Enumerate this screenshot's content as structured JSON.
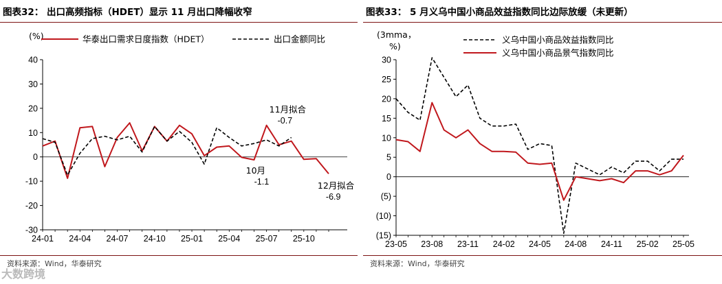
{
  "left_panel": {
    "title": "图表32：   出口高频指标（HDET）显示 11 月出口降幅收窄",
    "source": "资料来源：Wind，华泰研究"
  },
  "right_panel": {
    "title": "图表33：   5 月义乌中国小商品效益指数同比边际放缓（未更新）",
    "source": "资料来源：Wind，华泰研究"
  },
  "watermark": "大数跨境",
  "colors": {
    "red": "#c0171c",
    "black": "#000000",
    "rule": "#7b1010"
  },
  "chart_data": [
    {
      "type": "line",
      "ylabel": "(%)",
      "ylim": [
        -30,
        40
      ],
      "yticks": [
        -30,
        -20,
        -10,
        0,
        10,
        20,
        30,
        40
      ],
      "x": [
        "24-01",
        "24-02",
        "24-03",
        "24-04",
        "24-05",
        "24-06",
        "24-07",
        "24-08",
        "24-09",
        "24-10",
        "24-11",
        "24-12",
        "25-01",
        "25-02",
        "25-03",
        "25-04",
        "25-05",
        "25-06",
        "25-07",
        "25-08",
        "25-09",
        "25-10",
        "25-11",
        "25-12"
      ],
      "xtick_labels": [
        "24-01",
        "24-04",
        "24-07",
        "24-10",
        "25-01",
        "25-04",
        "25-07",
        "25-10"
      ],
      "series": [
        {
          "name": "华泰出口需求日度指数（HDET）",
          "style": "solid",
          "color": "#c0171c",
          "values": [
            4.5,
            6.5,
            -8.8,
            12.0,
            12.5,
            -4.0,
            8.0,
            14.0,
            2.5,
            12.5,
            6.5,
            13.0,
            9.5,
            0.5,
            4.0,
            4.5,
            -0.2,
            -1.2,
            13.0,
            5.0,
            6.5,
            -1.0,
            -0.7,
            -6.9
          ]
        },
        {
          "name": "出口金额同比",
          "style": "dashed",
          "color": "#000000",
          "values": [
            7.5,
            6.0,
            -7.5,
            1.5,
            7.5,
            8.5,
            7.0,
            8.5,
            2.0,
            12.5,
            6.5,
            10.5,
            6.0,
            -3.0,
            12.0,
            8.0,
            4.5,
            5.5,
            7.0,
            4.5,
            8.0,
            null,
            null,
            null
          ]
        }
      ],
      "annotations": [
        {
          "text": "11月拟合",
          "value": "-0.7"
        },
        {
          "text": "10月",
          "value": "-1.1"
        },
        {
          "text": "12月拟合",
          "value": "-6.9"
        }
      ]
    },
    {
      "type": "line",
      "ylabel": "(3mma，%)",
      "ylim": [
        -15,
        30
      ],
      "yticks": [
        -15,
        -10,
        -5,
        0,
        5,
        10,
        15,
        20,
        25,
        30
      ],
      "ytick_labels": [
        "(15)",
        "(10)",
        "(5)",
        "0",
        "5",
        "10",
        "15",
        "20",
        "25",
        "30"
      ],
      "x": [
        "23-05",
        "23-06",
        "23-07",
        "23-08",
        "23-09",
        "23-10",
        "23-11",
        "23-12",
        "24-01",
        "24-02",
        "24-03",
        "24-04",
        "24-05",
        "24-06",
        "24-07",
        "24-08",
        "24-09",
        "24-10",
        "24-11",
        "24-12",
        "25-01",
        "25-02",
        "25-03",
        "25-04",
        "25-05"
      ],
      "xtick_labels": [
        "23-05",
        "23-08",
        "23-11",
        "24-02",
        "24-05",
        "24-08",
        "24-11",
        "25-02",
        "25-05"
      ],
      "series": [
        {
          "name": "义乌中国小商品效益指数同比",
          "style": "dashed",
          "color": "#000000",
          "values": [
            20.0,
            16.5,
            14.5,
            30.5,
            25.5,
            20.5,
            23.5,
            15.0,
            13.0,
            13.0,
            13.5,
            7.0,
            8.5,
            8.0,
            -14.5,
            3.5,
            2.0,
            0.5,
            2.5,
            1.0,
            4.0,
            4.0,
            1.5,
            4.5,
            4.5
          ]
        },
        {
          "name": "义乌中国小商品景气指数同比",
          "style": "solid",
          "color": "#c0171c",
          "values": [
            9.5,
            9.0,
            6.5,
            19.0,
            12.0,
            10.0,
            12.0,
            8.5,
            6.5,
            6.5,
            6.3,
            3.5,
            3.2,
            3.5,
            -6.0,
            0.0,
            -0.5,
            -1.0,
            -0.5,
            -1.5,
            1.5,
            1.5,
            0.5,
            1.5,
            5.5
          ]
        }
      ]
    }
  ]
}
